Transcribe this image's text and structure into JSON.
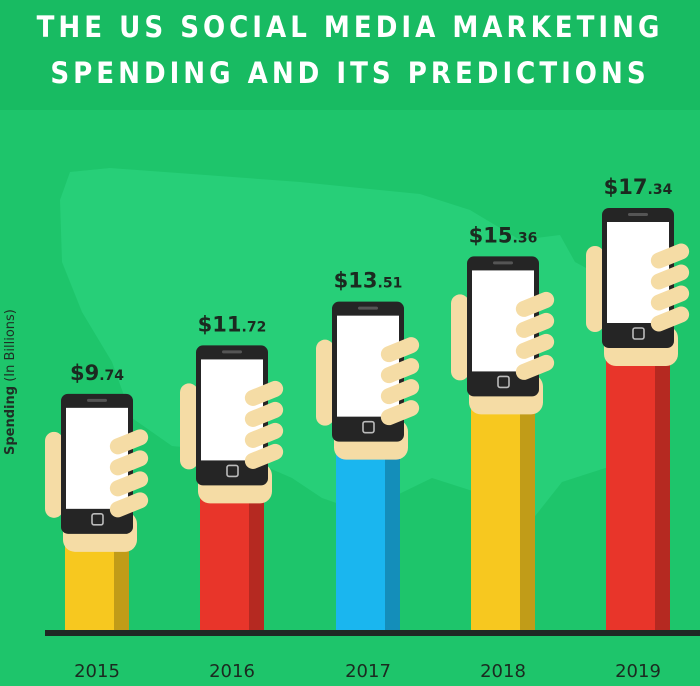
{
  "chart_data": {
    "type": "bar",
    "title_lines": [
      "THE US SOCIAL MEDIA MARKETING",
      "SPENDING AND ITS PREDICTIONS"
    ],
    "ylabel_main": "Spending",
    "ylabel_unit": "(In Billions)",
    "xlabel": "",
    "categories": [
      "2015",
      "2016",
      "2017",
      "2018",
      "2019"
    ],
    "values": [
      9.74,
      11.72,
      13.51,
      15.36,
      17.34
    ],
    "value_labels": [
      {
        "big": "$9",
        "small": ".74"
      },
      {
        "big": "$11",
        "small": ".72"
      },
      {
        "big": "$13",
        "small": ".51"
      },
      {
        "big": "$15",
        "small": ".36"
      },
      {
        "big": "$17",
        "small": ".34"
      }
    ],
    "sleeve_colors": [
      "#f7c81f",
      "#e8352a",
      "#1ab6ef",
      "#f7c81f",
      "#e8352a"
    ],
    "background_color": "#1ec56b",
    "title_band_color": "#18bb62",
    "map_color": "#27cf78",
    "grid": false,
    "legend": "none"
  }
}
